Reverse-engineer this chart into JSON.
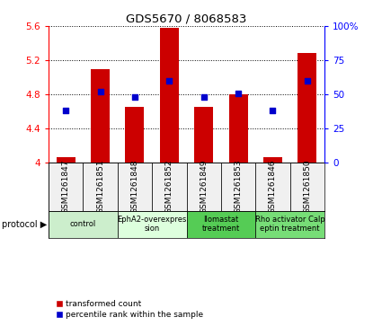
{
  "title": "GDS5670 / 8068583",
  "samples": [
    "GSM1261847",
    "GSM1261851",
    "GSM1261848",
    "GSM1261852",
    "GSM1261849",
    "GSM1261853",
    "GSM1261846",
    "GSM1261850"
  ],
  "bar_values": [
    4.07,
    5.1,
    4.65,
    5.58,
    4.65,
    4.8,
    4.07,
    5.28
  ],
  "bar_base": 4.0,
  "percentile_values": [
    38,
    52,
    48,
    60,
    48,
    51,
    38,
    60
  ],
  "protocols": [
    {
      "label": "control",
      "span": [
        0,
        2
      ],
      "color": "#cceecc"
    },
    {
      "label": "EphA2-overexpres\nsion",
      "span": [
        2,
        4
      ],
      "color": "#ddffdd"
    },
    {
      "label": "Ilomastat\ntreatment",
      "span": [
        4,
        6
      ],
      "color": "#55cc55"
    },
    {
      "label": "Rho activator Calp\neptin treatment",
      "span": [
        6,
        8
      ],
      "color": "#77dd77"
    }
  ],
  "ylim_left": [
    4.0,
    5.6
  ],
  "ylim_right": [
    0,
    100
  ],
  "yticks_left": [
    4.0,
    4.4,
    4.8,
    5.2,
    5.6
  ],
  "yticks_right": [
    0,
    25,
    50,
    75,
    100
  ],
  "bar_color": "#cc0000",
  "dot_color": "#0000cc",
  "bar_width": 0.55,
  "legend_labels": [
    "transformed count",
    "percentile rank within the sample"
  ],
  "legend_colors": [
    "#cc0000",
    "#0000cc"
  ],
  "bg_color": "#f0f0f0"
}
